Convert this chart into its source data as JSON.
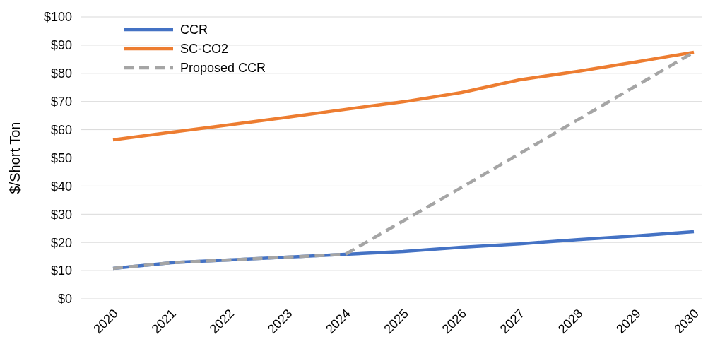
{
  "chart_data": {
    "type": "line",
    "ylabel": "$/Short Ton",
    "categories": [
      "2020",
      "2021",
      "2022",
      "2023",
      "2024",
      "2025",
      "2026",
      "2027",
      "2028",
      "2029",
      "2030"
    ],
    "ylim": [
      0,
      100
    ],
    "yticks": [
      {
        "value": 0,
        "label": "$0"
      },
      {
        "value": 10,
        "label": "$10"
      },
      {
        "value": 20,
        "label": "$20"
      },
      {
        "value": 30,
        "label": "$30"
      },
      {
        "value": 40,
        "label": "$40"
      },
      {
        "value": 50,
        "label": "$50"
      },
      {
        "value": 60,
        "label": "$60"
      },
      {
        "value": 70,
        "label": "$70"
      },
      {
        "value": 80,
        "label": "$80"
      },
      {
        "value": 90,
        "label": "$90"
      },
      {
        "value": 100,
        "label": "$100"
      }
    ],
    "grid": "y",
    "legend": "top left",
    "series": [
      {
        "name": "CCR",
        "color": "#4472c4",
        "values": [
          10.8,
          12.8,
          13.8,
          14.8,
          15.8,
          16.8,
          18.3,
          19.5,
          21,
          22.3,
          23.8
        ]
      },
      {
        "name": "SC-CO2",
        "color": "#ed7d31",
        "values": [
          56.4,
          59.1,
          61.7,
          64.4,
          67.2,
          69.9,
          73.2,
          77.7,
          80.7,
          84,
          87.5
        ]
      },
      {
        "name": "Proposed CCR",
        "color": "#a5a5a5",
        "line_style": "dashed",
        "values": [
          10.8,
          12.8,
          13.8,
          14.8,
          15.8,
          27.7,
          39.5,
          51.5,
          63.5,
          75.5,
          87.5
        ]
      }
    ]
  }
}
